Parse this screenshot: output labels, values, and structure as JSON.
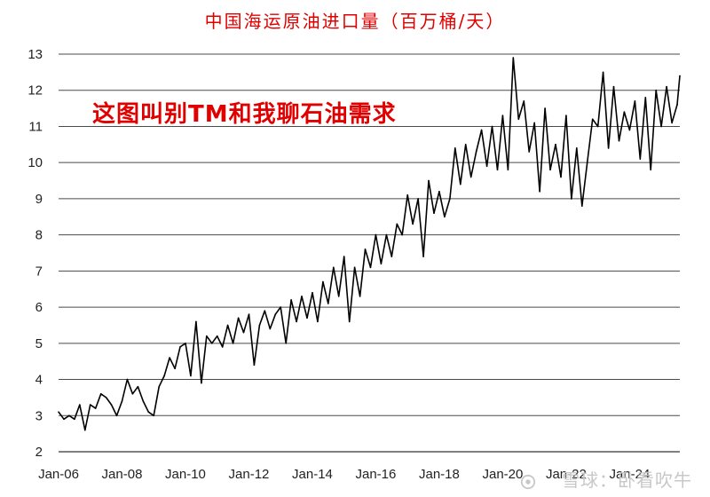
{
  "chart_data": {
    "type": "line",
    "title": "中国海运原油进口量（百万桶/天）",
    "annotation": "这图叫别TM和我聊石油需求",
    "watermark": "雪球：卧看吹牛",
    "xlabel": "",
    "ylabel": "",
    "ylim": [
      2,
      13
    ],
    "y_ticks": [
      2,
      3,
      4,
      5,
      6,
      7,
      8,
      9,
      10,
      11,
      12,
      13
    ],
    "x_ticks": [
      "Jan-06",
      "Jan-08",
      "Jan-10",
      "Jan-12",
      "Jan-14",
      "Jan-16",
      "Jan-18",
      "Jan-20",
      "Jan-22",
      "Jan-24"
    ],
    "x_range": [
      "2006-01",
      "2025-08"
    ],
    "grid": "horizontal",
    "line_color": "#000000",
    "series": [
      {
        "points": [
          [
            "2006-01",
            3.1
          ],
          [
            "2006-03",
            2.9
          ],
          [
            "2006-05",
            3.0
          ],
          [
            "2006-07",
            2.9
          ],
          [
            "2006-09",
            3.3
          ],
          [
            "2006-11",
            2.6
          ],
          [
            "2007-01",
            3.3
          ],
          [
            "2007-03",
            3.2
          ],
          [
            "2007-05",
            3.6
          ],
          [
            "2007-07",
            3.5
          ],
          [
            "2007-09",
            3.3
          ],
          [
            "2007-11",
            3.0
          ],
          [
            "2008-01",
            3.4
          ],
          [
            "2008-03",
            4.0
          ],
          [
            "2008-05",
            3.6
          ],
          [
            "2008-07",
            3.8
          ],
          [
            "2008-09",
            3.4
          ],
          [
            "2008-11",
            3.1
          ],
          [
            "2009-01",
            3.0
          ],
          [
            "2009-03",
            3.8
          ],
          [
            "2009-05",
            4.1
          ],
          [
            "2009-07",
            4.6
          ],
          [
            "2009-09",
            4.3
          ],
          [
            "2009-11",
            4.9
          ],
          [
            "2010-01",
            5.0
          ],
          [
            "2010-03",
            4.1
          ],
          [
            "2010-05",
            5.6
          ],
          [
            "2010-07",
            3.9
          ],
          [
            "2010-09",
            5.2
          ],
          [
            "2010-11",
            5.0
          ],
          [
            "2011-01",
            5.2
          ],
          [
            "2011-03",
            4.9
          ],
          [
            "2011-05",
            5.5
          ],
          [
            "2011-07",
            5.0
          ],
          [
            "2011-09",
            5.7
          ],
          [
            "2011-11",
            5.3
          ],
          [
            "2012-01",
            5.8
          ],
          [
            "2012-03",
            4.4
          ],
          [
            "2012-05",
            5.5
          ],
          [
            "2012-07",
            5.9
          ],
          [
            "2012-09",
            5.4
          ],
          [
            "2012-11",
            5.8
          ],
          [
            "2013-01",
            6.0
          ],
          [
            "2013-03",
            5.0
          ],
          [
            "2013-05",
            6.2
          ],
          [
            "2013-07",
            5.6
          ],
          [
            "2013-09",
            6.3
          ],
          [
            "2013-11",
            5.7
          ],
          [
            "2014-01",
            6.4
          ],
          [
            "2014-03",
            5.6
          ],
          [
            "2014-05",
            6.7
          ],
          [
            "2014-07",
            6.1
          ],
          [
            "2014-09",
            7.1
          ],
          [
            "2014-11",
            6.3
          ],
          [
            "2015-01",
            7.4
          ],
          [
            "2015-03",
            5.6
          ],
          [
            "2015-05",
            7.1
          ],
          [
            "2015-07",
            6.3
          ],
          [
            "2015-09",
            7.6
          ],
          [
            "2015-11",
            7.1
          ],
          [
            "2016-01",
            8.0
          ],
          [
            "2016-03",
            7.2
          ],
          [
            "2016-05",
            8.0
          ],
          [
            "2016-07",
            7.4
          ],
          [
            "2016-09",
            8.3
          ],
          [
            "2016-11",
            8.0
          ],
          [
            "2017-01",
            9.1
          ],
          [
            "2017-03",
            8.3
          ],
          [
            "2017-05",
            9.0
          ],
          [
            "2017-07",
            7.4
          ],
          [
            "2017-09",
            9.5
          ],
          [
            "2017-11",
            8.6
          ],
          [
            "2018-01",
            9.2
          ],
          [
            "2018-03",
            8.5
          ],
          [
            "2018-05",
            9.0
          ],
          [
            "2018-07",
            10.4
          ],
          [
            "2018-09",
            9.4
          ],
          [
            "2018-11",
            10.5
          ],
          [
            "2019-01",
            9.6
          ],
          [
            "2019-03",
            10.3
          ],
          [
            "2019-05",
            10.9
          ],
          [
            "2019-07",
            9.9
          ],
          [
            "2019-09",
            11.0
          ],
          [
            "2019-11",
            9.8
          ],
          [
            "2020-01",
            11.3
          ],
          [
            "2020-03",
            9.8
          ],
          [
            "2020-05",
            12.9
          ],
          [
            "2020-07",
            11.2
          ],
          [
            "2020-09",
            11.7
          ],
          [
            "2020-11",
            10.3
          ],
          [
            "2021-01",
            11.1
          ],
          [
            "2021-03",
            9.2
          ],
          [
            "2021-05",
            11.5
          ],
          [
            "2021-07",
            9.8
          ],
          [
            "2021-09",
            10.5
          ],
          [
            "2021-11",
            9.6
          ],
          [
            "2022-01",
            11.3
          ],
          [
            "2022-03",
            9.0
          ],
          [
            "2022-05",
            10.4
          ],
          [
            "2022-07",
            8.8
          ],
          [
            "2022-09",
            10.0
          ],
          [
            "2022-11",
            11.2
          ],
          [
            "2023-01",
            11.0
          ],
          [
            "2023-03",
            12.5
          ],
          [
            "2023-05",
            10.4
          ],
          [
            "2023-07",
            12.1
          ],
          [
            "2023-09",
            10.6
          ],
          [
            "2023-11",
            11.4
          ],
          [
            "2024-01",
            10.9
          ],
          [
            "2024-03",
            11.7
          ],
          [
            "2024-05",
            10.1
          ],
          [
            "2024-07",
            11.8
          ],
          [
            "2024-09",
            9.8
          ],
          [
            "2024-11",
            12.0
          ],
          [
            "2025-01",
            11.0
          ],
          [
            "2025-03",
            12.1
          ],
          [
            "2025-05",
            11.1
          ],
          [
            "2025-07",
            11.6
          ],
          [
            "2025-08",
            12.4
          ]
        ]
      }
    ]
  }
}
